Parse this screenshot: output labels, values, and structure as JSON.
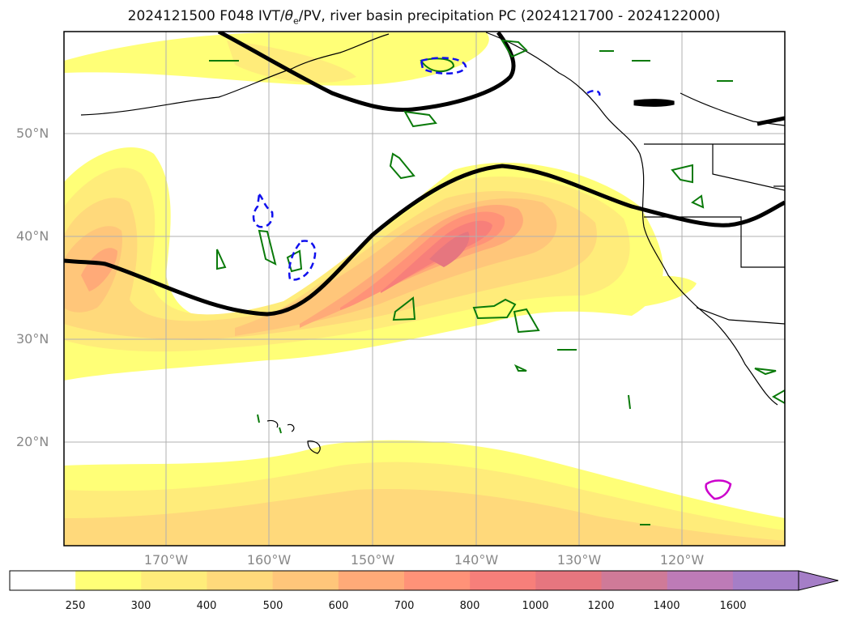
{
  "title_parts": {
    "prefix": "2024121500 F048 IVT/",
    "theta": "θ",
    "sub": "e",
    "suffix": "/PV, river basin precipitation PC (2024121700 - 2024122000)"
  },
  "lat_labels": [
    "50°N",
    "40°N",
    "30°N",
    "20°N"
  ],
  "lon_labels": [
    "170°W",
    "160°W",
    "150°W",
    "140°W",
    "130°W",
    "120°W"
  ],
  "colorbar": {
    "labels": [
      "250",
      "300",
      "400",
      "500",
      "600",
      "700",
      "800",
      "1000",
      "1200",
      "1400",
      "1600"
    ],
    "colors": [
      "#ffffff",
      "#ffff77",
      "#ffec7a",
      "#ffd97b",
      "#ffc67a",
      "#ffaa78",
      "#ff9278",
      "#f77f7a",
      "#e6767f",
      "#cf7a98",
      "#bd7bb7",
      "#a57ec7"
    ]
  }
}
